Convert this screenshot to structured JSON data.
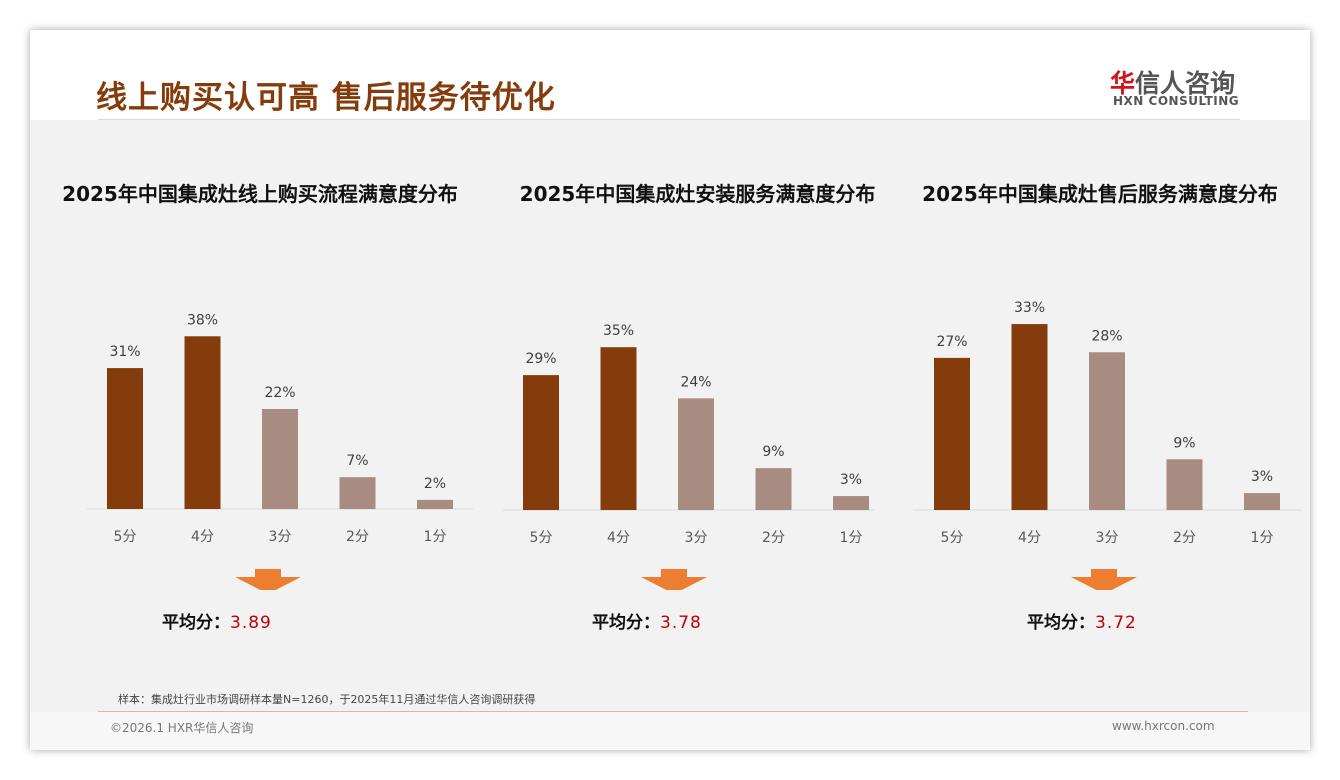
{
  "header": {
    "title": "线上购买认可高 售后服务待优化",
    "logo_cn_red": "华",
    "logo_cn": "信人咨询",
    "logo_en": "HXN CONSULTING"
  },
  "chart_data": [
    {
      "type": "bar",
      "title": "2025年中国集成灶线上购买流程满意度分布",
      "categories": [
        "5分",
        "4分",
        "3分",
        "2分",
        "1分"
      ],
      "values": [
        31,
        38,
        22,
        7,
        2
      ],
      "labels": [
        "31%",
        "38%",
        "22%",
        "7%",
        "2%"
      ],
      "ylim": [
        0,
        44
      ],
      "avg_label": "平均分：",
      "avg": "3.89"
    },
    {
      "type": "bar",
      "title": "2025年中国集成灶安装服务满意度分布",
      "categories": [
        "5分",
        "4分",
        "3分",
        "2分",
        "1分"
      ],
      "values": [
        29,
        35,
        24,
        9,
        3
      ],
      "labels": [
        "29%",
        "35%",
        "24%",
        "9%",
        "3%"
      ],
      "ylim": [
        0,
        43
      ],
      "avg_label": "平均分：",
      "avg": "3.78"
    },
    {
      "type": "bar",
      "title": "2025年中国集成灶售后服务满意度分布",
      "categories": [
        "5分",
        "4分",
        "3分",
        "2分",
        "1分"
      ],
      "values": [
        27,
        33,
        28,
        9,
        3
      ],
      "labels": [
        "27%",
        "33%",
        "28%",
        "9%",
        "3%"
      ],
      "ylim": [
        0,
        35.5
      ],
      "avg_label": "平均分：",
      "avg": "3.72"
    }
  ],
  "colors": {
    "dark": "#843c0c",
    "light": "#a88c82",
    "arrow": "#ed7d31"
  },
  "footer": {
    "note": "样本：集成灶行业市场调研样本量N=1260，于2025年11月通过华信人咨询调研获得",
    "copyright": "©2026.1 HXR华信人咨询",
    "website": "www.hxrcon.com"
  }
}
